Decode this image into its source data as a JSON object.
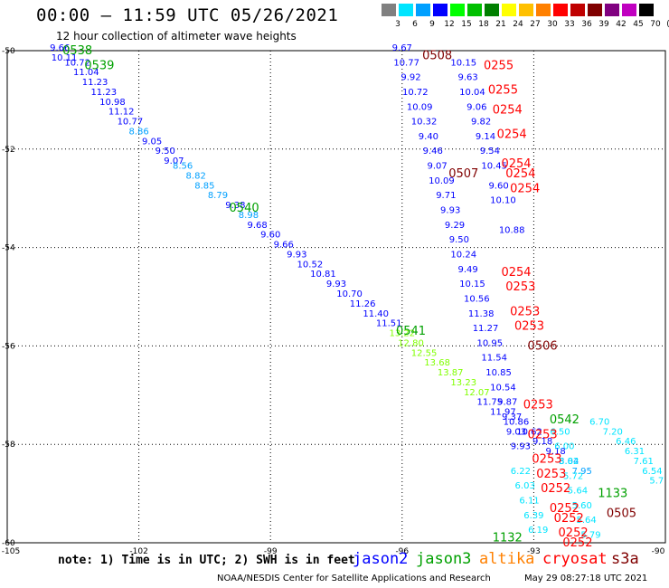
{
  "title": "00:00 – 11:59 UTC 05/26/2021",
  "subtitle": "12 hour collection of altimeter wave heights",
  "legend": {
    "labels": [
      "3",
      "6",
      "9",
      "12",
      "15",
      "18",
      "21",
      "24",
      "27",
      "30",
      "33",
      "36",
      "39",
      "42",
      "45",
      "70",
      "(ft)"
    ],
    "colors": [
      "#808080",
      "#00e5ff",
      "#00a0ff",
      "#0000ff",
      "#00ff00",
      "#00c000",
      "#008000",
      "#ffff00",
      "#ffc000",
      "#ff8000",
      "#ff0000",
      "#c00000",
      "#800000",
      "#800080",
      "#c000c0",
      "#000000"
    ]
  },
  "note": "note: 1) Time is in UTC; 2) SWH is in feet",
  "satellites": [
    {
      "name": "jason2",
      "color": "#0000ff"
    },
    {
      "name": "jason3",
      "color": "#00a000"
    },
    {
      "name": "altika",
      "color": "#ff8000"
    },
    {
      "name": "cryosat",
      "color": "#ff0000"
    },
    {
      "name": "s3a",
      "color": "#800000"
    }
  ],
  "credit": "NOAA/NESDIS Center for Satellite Applications and Research",
  "generated": "May 29 08:27:18 UTC 2021",
  "chart_data": {
    "type": "scatter",
    "xlim": [
      -105,
      -90
    ],
    "ylim": [
      -60,
      -50
    ],
    "xticks": [
      "-105",
      "-102",
      "-99",
      "-96",
      "-93",
      "-90"
    ],
    "yticks": [
      "-50",
      "-52",
      "-54",
      "-56",
      "-58",
      "-60"
    ],
    "grid": true,
    "points": [
      {
        "x": -103.8,
        "y": -50.0,
        "label": "9.66",
        "color": "#0000ff"
      },
      {
        "x": -103.7,
        "y": -50.2,
        "label": "10.11",
        "color": "#0000ff"
      },
      {
        "x": -103.4,
        "y": -50.3,
        "label": "10.72",
        "color": "#0000ff"
      },
      {
        "x": -103.2,
        "y": -50.5,
        "label": "11.04",
        "color": "#0000ff"
      },
      {
        "x": -103.0,
        "y": -50.7,
        "label": "11.23",
        "color": "#0000ff"
      },
      {
        "x": -102.8,
        "y": -50.9,
        "label": "11.23",
        "color": "#0000ff"
      },
      {
        "x": -102.6,
        "y": -51.1,
        "label": "10.98",
        "color": "#0000ff"
      },
      {
        "x": -102.4,
        "y": -51.3,
        "label": "11.12",
        "color": "#0000ff"
      },
      {
        "x": -102.2,
        "y": -51.5,
        "label": "10.77",
        "color": "#0000ff"
      },
      {
        "x": -102.0,
        "y": -51.7,
        "label": "8.86",
        "color": "#00a0ff"
      },
      {
        "x": -101.7,
        "y": -51.9,
        "label": "9.05",
        "color": "#0000ff"
      },
      {
        "x": -101.4,
        "y": -52.1,
        "label": "9.50",
        "color": "#0000ff"
      },
      {
        "x": -101.2,
        "y": -52.3,
        "label": "9.07",
        "color": "#0000ff"
      },
      {
        "x": -101.0,
        "y": -52.4,
        "label": "8.56",
        "color": "#00a0ff"
      },
      {
        "x": -100.7,
        "y": -52.6,
        "label": "8.82",
        "color": "#00a0ff"
      },
      {
        "x": -100.5,
        "y": -52.8,
        "label": "8.85",
        "color": "#00a0ff"
      },
      {
        "x": -100.2,
        "y": -53.0,
        "label": "8.79",
        "color": "#00a0ff"
      },
      {
        "x": -99.8,
        "y": -53.2,
        "label": "9.38",
        "color": "#0000ff"
      },
      {
        "x": -99.5,
        "y": -53.4,
        "label": "8.98",
        "color": "#00a0ff"
      },
      {
        "x": -99.3,
        "y": -53.6,
        "label": "9.68",
        "color": "#0000ff"
      },
      {
        "x": -99.0,
        "y": -53.8,
        "label": "9.60",
        "color": "#0000ff"
      },
      {
        "x": -98.7,
        "y": -54.0,
        "label": "9.66",
        "color": "#0000ff"
      },
      {
        "x": -98.4,
        "y": -54.2,
        "label": "9.93",
        "color": "#0000ff"
      },
      {
        "x": -98.1,
        "y": -54.4,
        "label": "10.52",
        "color": "#0000ff"
      },
      {
        "x": -97.8,
        "y": -54.6,
        "label": "10.81",
        "color": "#0000ff"
      },
      {
        "x": -97.5,
        "y": -54.8,
        "label": "9.93",
        "color": "#0000ff"
      },
      {
        "x": -97.2,
        "y": -55.0,
        "label": "10.70",
        "color": "#0000ff"
      },
      {
        "x": -96.9,
        "y": -55.2,
        "label": "11.26",
        "color": "#0000ff"
      },
      {
        "x": -96.6,
        "y": -55.4,
        "label": "11.40",
        "color": "#0000ff"
      },
      {
        "x": -96.3,
        "y": -55.6,
        "label": "11.51",
        "color": "#0000ff"
      },
      {
        "x": -96.0,
        "y": -55.8,
        "label": "13.22",
        "color": "#80ff00"
      },
      {
        "x": -95.8,
        "y": -56.0,
        "label": "12.80",
        "color": "#80ff00"
      },
      {
        "x": -95.5,
        "y": -56.2,
        "label": "12.55",
        "color": "#80ff00"
      },
      {
        "x": -95.2,
        "y": -56.4,
        "label": "13.68",
        "color": "#80ff00"
      },
      {
        "x": -94.9,
        "y": -56.6,
        "label": "13.87",
        "color": "#80ff00"
      },
      {
        "x": -94.6,
        "y": -56.8,
        "label": "13.23",
        "color": "#80ff00"
      },
      {
        "x": -94.3,
        "y": -57.0,
        "label": "12.07",
        "color": "#80ff00"
      },
      {
        "x": -94.0,
        "y": -57.2,
        "label": "11.75",
        "color": "#0000ff"
      },
      {
        "x": -93.7,
        "y": -57.4,
        "label": "11.97",
        "color": "#0000ff"
      },
      {
        "x": -93.4,
        "y": -57.6,
        "label": "10.86",
        "color": "#0000ff"
      },
      {
        "x": -93.1,
        "y": -57.8,
        "label": "10.62",
        "color": "#0000ff"
      },
      {
        "x": -92.8,
        "y": -58.0,
        "label": "9.18",
        "color": "#0000ff"
      },
      {
        "x": -92.5,
        "y": -58.2,
        "label": "9.18",
        "color": "#0000ff"
      },
      {
        "x": -92.2,
        "y": -58.4,
        "label": "8.04",
        "color": "#00a0ff"
      },
      {
        "x": -91.9,
        "y": -58.6,
        "label": "7.95",
        "color": "#00a0ff"
      },
      {
        "x": -96.0,
        "y": -50.0,
        "label": "9.67",
        "color": "#0000ff"
      },
      {
        "x": -95.9,
        "y": -50.3,
        "label": "10.77",
        "color": "#0000ff"
      },
      {
        "x": -95.8,
        "y": -50.6,
        "label": "9.92",
        "color": "#0000ff"
      },
      {
        "x": -95.7,
        "y": -50.9,
        "label": "10.72",
        "color": "#0000ff"
      },
      {
        "x": -95.6,
        "y": -51.2,
        "label": "10.09",
        "color": "#0000ff"
      },
      {
        "x": -95.5,
        "y": -51.5,
        "label": "10.32",
        "color": "#0000ff"
      },
      {
        "x": -95.4,
        "y": -51.8,
        "label": "9.40",
        "color": "#0000ff"
      },
      {
        "x": -95.3,
        "y": -52.1,
        "label": "9.46",
        "color": "#0000ff"
      },
      {
        "x": -95.2,
        "y": -52.4,
        "label": "9.07",
        "color": "#0000ff"
      },
      {
        "x": -95.1,
        "y": -52.7,
        "label": "10.09",
        "color": "#0000ff"
      },
      {
        "x": -95.0,
        "y": -53.0,
        "label": "9.71",
        "color": "#0000ff"
      },
      {
        "x": -94.9,
        "y": -53.3,
        "label": "9.93",
        "color": "#0000ff"
      },
      {
        "x": -94.8,
        "y": -53.6,
        "label": "9.29",
        "color": "#0000ff"
      },
      {
        "x": -94.7,
        "y": -53.9,
        "label": "9.50",
        "color": "#0000ff"
      },
      {
        "x": -94.6,
        "y": -54.2,
        "label": "10.24",
        "color": "#0000ff"
      },
      {
        "x": -94.5,
        "y": -54.5,
        "label": "9.49",
        "color": "#0000ff"
      },
      {
        "x": -94.4,
        "y": -54.8,
        "label": "10.15",
        "color": "#0000ff"
      },
      {
        "x": -94.3,
        "y": -55.1,
        "label": "10.56",
        "color": "#0000ff"
      },
      {
        "x": -94.2,
        "y": -55.4,
        "label": "11.38",
        "color": "#0000ff"
      },
      {
        "x": -94.1,
        "y": -55.7,
        "label": "11.27",
        "color": "#0000ff"
      },
      {
        "x": -94.0,
        "y": -56.0,
        "label": "10.95",
        "color": "#0000ff"
      },
      {
        "x": -93.9,
        "y": -56.3,
        "label": "11.54",
        "color": "#0000ff"
      },
      {
        "x": -93.8,
        "y": -56.6,
        "label": "10.85",
        "color": "#0000ff"
      },
      {
        "x": -93.7,
        "y": -56.9,
        "label": "10.54",
        "color": "#0000ff"
      },
      {
        "x": -93.6,
        "y": -57.2,
        "label": "9.87",
        "color": "#0000ff"
      },
      {
        "x": -93.5,
        "y": -57.5,
        "label": "9.37",
        "color": "#0000ff"
      },
      {
        "x": -93.4,
        "y": -57.8,
        "label": "9.03",
        "color": "#0000ff"
      },
      {
        "x": -93.3,
        "y": -58.1,
        "label": "9.93",
        "color": "#0000ff"
      },
      {
        "x": -94.6,
        "y": -50.3,
        "label": "10.15",
        "color": "#0000ff"
      },
      {
        "x": -94.5,
        "y": -50.6,
        "label": "9.63",
        "color": "#0000ff"
      },
      {
        "x": -94.4,
        "y": -50.9,
        "label": "10.04",
        "color": "#0000ff"
      },
      {
        "x": -94.3,
        "y": -51.2,
        "label": "9.06",
        "color": "#0000ff"
      },
      {
        "x": -94.2,
        "y": -51.5,
        "label": "9.82",
        "color": "#0000ff"
      },
      {
        "x": -94.1,
        "y": -51.8,
        "label": "9.14",
        "color": "#0000ff"
      },
      {
        "x": -94.0,
        "y": -52.1,
        "label": "9.54",
        "color": "#0000ff"
      },
      {
        "x": -93.9,
        "y": -52.4,
        "label": "10.45",
        "color": "#0000ff"
      },
      {
        "x": -93.8,
        "y": -52.8,
        "label": "9.60",
        "color": "#0000ff"
      },
      {
        "x": -93.7,
        "y": -53.1,
        "label": "10.10",
        "color": "#0000ff"
      },
      {
        "x": -93.5,
        "y": -53.7,
        "label": "10.88",
        "color": "#0000ff"
      },
      {
        "x": -93.3,
        "y": -58.6,
        "label": "6.22",
        "color": "#00e5ff"
      },
      {
        "x": -93.2,
        "y": -58.9,
        "label": "6.03",
        "color": "#00e5ff"
      },
      {
        "x": -93.1,
        "y": -59.2,
        "label": "6.11",
        "color": "#00e5ff"
      },
      {
        "x": -93.0,
        "y": -59.5,
        "label": "6.39",
        "color": "#00e5ff"
      },
      {
        "x": -92.9,
        "y": -59.8,
        "label": "6.19",
        "color": "#00e5ff"
      },
      {
        "x": -92.4,
        "y": -57.8,
        "label": "6.50",
        "color": "#00e5ff"
      },
      {
        "x": -92.3,
        "y": -58.1,
        "label": "6.00",
        "color": "#00e5ff"
      },
      {
        "x": -92.2,
        "y": -58.4,
        "label": "5.82",
        "color": "#00e5ff"
      },
      {
        "x": -92.1,
        "y": -58.7,
        "label": "5.72",
        "color": "#00e5ff"
      },
      {
        "x": -92.0,
        "y": -59.0,
        "label": "5.64",
        "color": "#00e5ff"
      },
      {
        "x": -91.9,
        "y": -59.3,
        "label": "5.60",
        "color": "#00e5ff"
      },
      {
        "x": -91.8,
        "y": -59.6,
        "label": "5.64",
        "color": "#00e5ff"
      },
      {
        "x": -91.7,
        "y": -59.9,
        "label": "5.79",
        "color": "#00e5ff"
      },
      {
        "x": -91.5,
        "y": -57.6,
        "label": "6.70",
        "color": "#00e5ff"
      },
      {
        "x": -91.2,
        "y": -57.8,
        "label": "7.20",
        "color": "#00e5ff"
      },
      {
        "x": -90.9,
        "y": -58.0,
        "label": "6.46",
        "color": "#00e5ff"
      },
      {
        "x": -90.7,
        "y": -58.2,
        "label": "6.31",
        "color": "#00e5ff"
      },
      {
        "x": -90.5,
        "y": -58.4,
        "label": "7.61",
        "color": "#00e5ff"
      },
      {
        "x": -90.3,
        "y": -58.6,
        "label": "6.54",
        "color": "#00e5ff"
      },
      {
        "x": -90.2,
        "y": -58.8,
        "label": "5.7",
        "color": "#00e5ff"
      }
    ],
    "passes": [
      {
        "x": -103.4,
        "y": -50.0,
        "label": "0538",
        "color": "#00a000"
      },
      {
        "x": -102.9,
        "y": -50.3,
        "label": "0539",
        "color": "#00a000"
      },
      {
        "x": -99.6,
        "y": -53.2,
        "label": "0540",
        "color": "#00a000"
      },
      {
        "x": -95.8,
        "y": -55.7,
        "label": "0541",
        "color": "#00a000"
      },
      {
        "x": -92.3,
        "y": -57.5,
        "label": "0542",
        "color": "#00a000"
      },
      {
        "x": -91.2,
        "y": -59.0,
        "label": "1133",
        "color": "#00a000"
      },
      {
        "x": -93.6,
        "y": -59.9,
        "label": "1132",
        "color": "#00a000"
      },
      {
        "x": -95.2,
        "y": -50.1,
        "label": "0508",
        "color": "#800000"
      },
      {
        "x": -94.6,
        "y": -52.5,
        "label": "0507",
        "color": "#800000"
      },
      {
        "x": -92.8,
        "y": -56.0,
        "label": "0506",
        "color": "#800000"
      },
      {
        "x": -91.0,
        "y": -59.4,
        "label": "0505",
        "color": "#800000"
      },
      {
        "x": -93.8,
        "y": -50.3,
        "label": "0255",
        "color": "#ff0000"
      },
      {
        "x": -93.7,
        "y": -50.8,
        "label": "0255",
        "color": "#ff0000"
      },
      {
        "x": -93.6,
        "y": -51.2,
        "label": "0254",
        "color": "#ff0000"
      },
      {
        "x": -93.5,
        "y": -51.7,
        "label": "0254",
        "color": "#ff0000"
      },
      {
        "x": -93.4,
        "y": -52.3,
        "label": "0254",
        "color": "#ff0000"
      },
      {
        "x": -93.3,
        "y": -52.5,
        "label": "0254",
        "color": "#ff0000"
      },
      {
        "x": -93.2,
        "y": -52.8,
        "label": "0254",
        "color": "#ff0000"
      },
      {
        "x": -93.4,
        "y": -54.5,
        "label": "0254",
        "color": "#ff0000"
      },
      {
        "x": -93.3,
        "y": -54.8,
        "label": "0253",
        "color": "#ff0000"
      },
      {
        "x": -93.2,
        "y": -55.3,
        "label": "0253",
        "color": "#ff0000"
      },
      {
        "x": -93.1,
        "y": -55.6,
        "label": "0253",
        "color": "#ff0000"
      },
      {
        "x": -92.9,
        "y": -57.2,
        "label": "0253",
        "color": "#ff0000"
      },
      {
        "x": -92.8,
        "y": -57.8,
        "label": "0253",
        "color": "#ff0000"
      },
      {
        "x": -92.7,
        "y": -58.3,
        "label": "0253",
        "color": "#ff0000"
      },
      {
        "x": -92.6,
        "y": -58.6,
        "label": "0253",
        "color": "#ff0000"
      },
      {
        "x": -92.5,
        "y": -58.9,
        "label": "0252",
        "color": "#ff0000"
      },
      {
        "x": -92.3,
        "y": -59.3,
        "label": "0252",
        "color": "#ff0000"
      },
      {
        "x": -92.2,
        "y": -59.5,
        "label": "0252",
        "color": "#ff0000"
      },
      {
        "x": -92.1,
        "y": -59.8,
        "label": "0252",
        "color": "#ff0000"
      },
      {
        "x": -92.0,
        "y": -60.0,
        "label": "0252",
        "color": "#ff0000"
      }
    ]
  }
}
